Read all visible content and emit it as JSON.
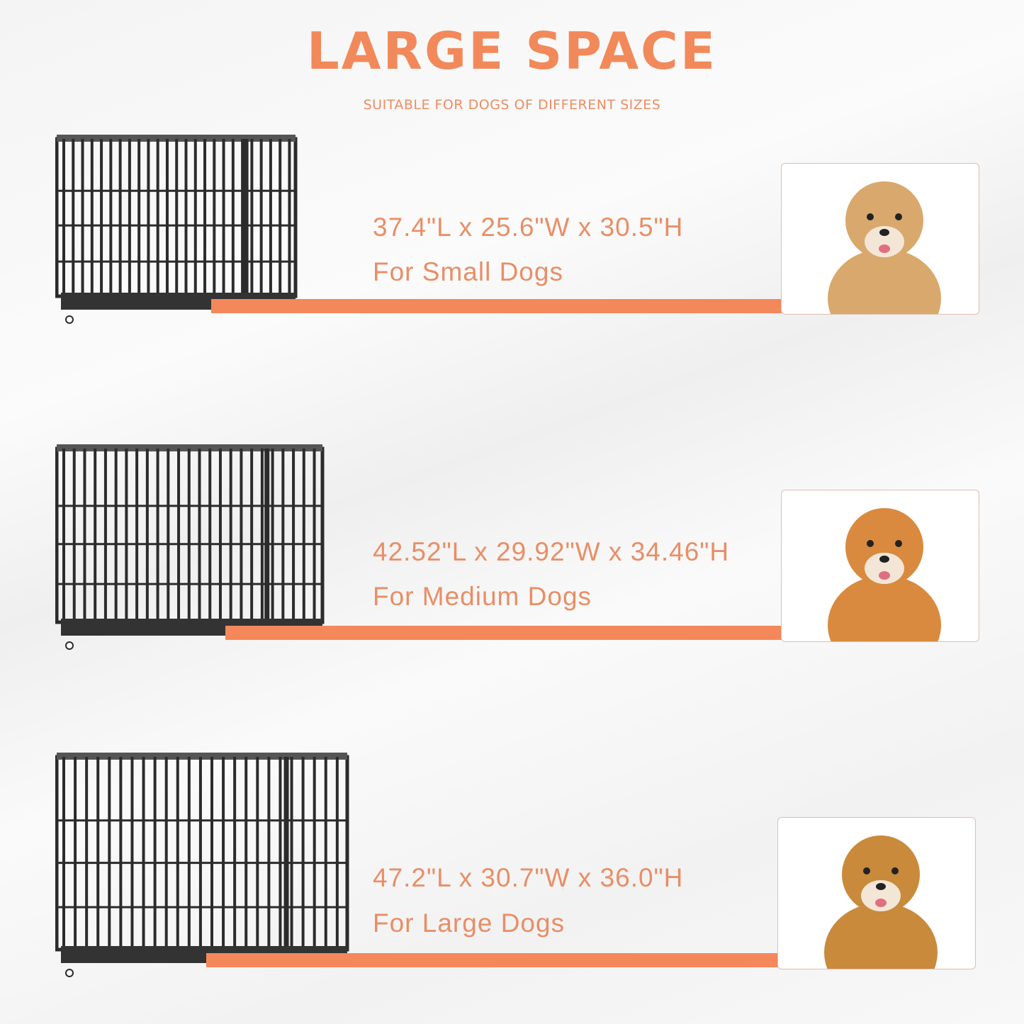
{
  "header": {
    "title": "LARGE SPACE",
    "subtitle": "SUITABLE FOR DOGS OF DIFFERENT SIZES"
  },
  "colors": {
    "accent": "#f4885a",
    "text": "#e98e66",
    "cage": "#2b2b2b"
  },
  "rows": [
    {
      "dimensions": "37.4\"L x 25.6\"W x 30.5\"H",
      "label": "For Small Dogs",
      "dog": "small-fluffy-dog",
      "fur": "#d9a86c"
    },
    {
      "dimensions": "42.52\"L x 29.92\"W x 34.46\"H",
      "label": "For Medium Dogs",
      "dog": "shiba-inu",
      "fur": "#d98a3e"
    },
    {
      "dimensions": "47.2\"L x 30.7\"W x 36.0\"H",
      "label": "For Large Dogs",
      "dog": "golden-retriever",
      "fur": "#c98a3c"
    }
  ]
}
